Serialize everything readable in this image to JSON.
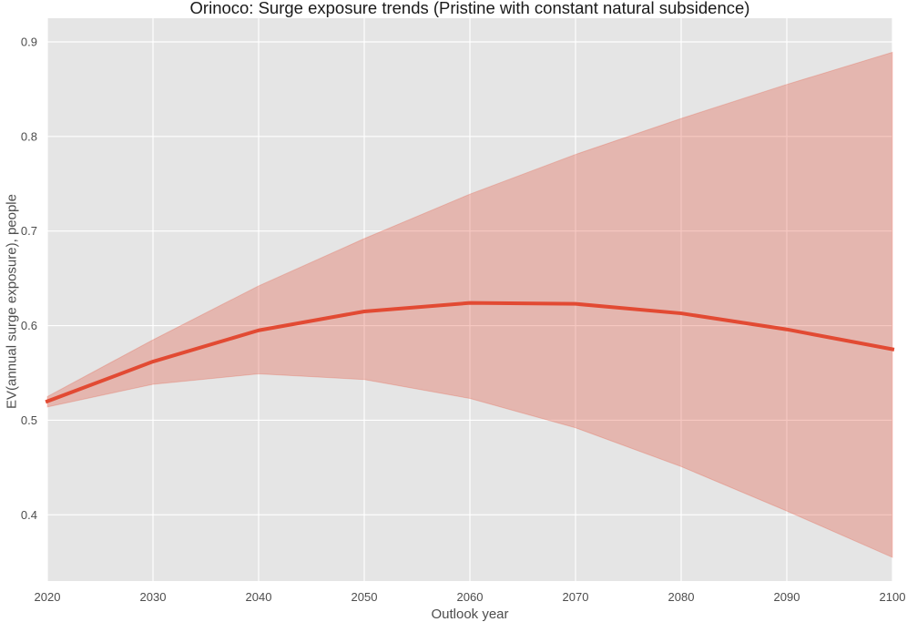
{
  "chart_data": {
    "type": "area",
    "title": "Orinoco: Surge exposure trends (Pristine with constant natural subsidence)",
    "xlabel": "Outlook year",
    "ylabel": "EV(annual surge exposure), people",
    "x": [
      2020,
      2030,
      2040,
      2050,
      2060,
      2070,
      2080,
      2090,
      2100
    ],
    "xlim": [
      2020,
      2100
    ],
    "ylim": [
      0.33,
      0.925
    ],
    "xticks": [
      2020,
      2030,
      2040,
      2050,
      2060,
      2070,
      2080,
      2090,
      2100
    ],
    "yticks": [
      0.4,
      0.5,
      0.6,
      0.7,
      0.8,
      0.9
    ],
    "xtick_labels": [
      "2020",
      "2030",
      "2040",
      "2050",
      "2060",
      "2070",
      "2080",
      "2090",
      "2100"
    ],
    "ytick_labels": [
      "0.4",
      "0.5",
      "0.6",
      "0.7",
      "0.8",
      "0.9"
    ],
    "grid": true,
    "series": [
      {
        "values": [
          0.52,
          0.562,
          0.595,
          0.615,
          0.624,
          0.623,
          0.613,
          0.596,
          0.575
        ],
        "lower": [
          0.514,
          0.538,
          0.549,
          0.543,
          0.523,
          0.492,
          0.451,
          0.404,
          0.355
        ],
        "upper": [
          0.525,
          0.585,
          0.642,
          0.692,
          0.739,
          0.781,
          0.819,
          0.855,
          0.889
        ]
      }
    ],
    "colors": {
      "line": "#e24a33",
      "band": "#e24a33",
      "band_opacity": 0.3,
      "plot_background": "#e5e5e5",
      "grid": "#ffffff"
    }
  }
}
